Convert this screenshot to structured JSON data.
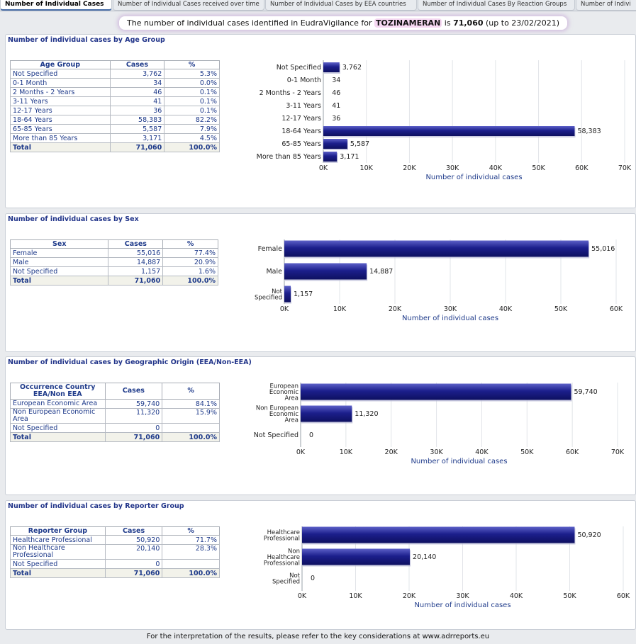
{
  "tabs": [
    {
      "label": "Number of Individual Cases",
      "active": true
    },
    {
      "label": "Number of Individual Cases received over time",
      "active": false
    },
    {
      "label": "Number of Individual Cases by EEA countries",
      "active": false
    },
    {
      "label": "Number of Individual Cases By Reaction Groups",
      "active": false
    },
    {
      "label": "Number of Indivi",
      "active": false
    }
  ],
  "banner": {
    "prefix": "The number of individual cases identified in EudraVigilance for ",
    "product": "TOZINAMERAN",
    "mid": " is ",
    "count": "71,060",
    "suffix": " (up to 23/02/2021)"
  },
  "footer": "For the interpretation of the results, please refer to the key considerations at www.adrreports.eu",
  "colors": {
    "bar": "#1c1f8c",
    "title": "#22358a"
  },
  "sections": [
    {
      "title": "Number of individual cases by Age Group",
      "table": {
        "headers": [
          "Age Group",
          "Cases",
          "%"
        ],
        "rows": [
          [
            "Not Specified",
            "3,762",
            "5.3%"
          ],
          [
            "0-1 Month",
            "34",
            "0.0%"
          ],
          [
            "2 Months - 2 Years",
            "46",
            "0.1%"
          ],
          [
            "3-11 Years",
            "41",
            "0.1%"
          ],
          [
            "12-17 Years",
            "36",
            "0.1%"
          ],
          [
            "18-64 Years",
            "58,383",
            "82.2%"
          ],
          [
            "65-85 Years",
            "5,587",
            "7.9%"
          ],
          [
            "More than 85 Years",
            "3,171",
            "4.5%"
          ]
        ],
        "total": [
          "Total",
          "71,060",
          "100.0%"
        ]
      }
    },
    {
      "title": "Number of individual cases by Sex",
      "table": {
        "headers": [
          "Sex",
          "Cases",
          "%"
        ],
        "rows": [
          [
            "Female",
            "55,016",
            "77.4%"
          ],
          [
            "Male",
            "14,887",
            "20.9%"
          ],
          [
            "Not Specified",
            "1,157",
            "1.6%"
          ]
        ],
        "total": [
          "Total",
          "71,060",
          "100.0%"
        ]
      }
    },
    {
      "title": "Number of individual cases by Geographic Origin (EEA/Non-EEA)",
      "table": {
        "headers": [
          "Occurrence Country EEA/Non EEA",
          "Cases",
          "%"
        ],
        "rows": [
          [
            "European Economic Area",
            "59,740",
            "84.1%"
          ],
          [
            "Non European Economic Area",
            "11,320",
            "15.9%"
          ],
          [
            "Not Specified",
            "0",
            ""
          ]
        ],
        "total": [
          "Total",
          "71,060",
          "100.0%"
        ]
      }
    },
    {
      "title": "Number of individual cases by Reporter Group",
      "table": {
        "headers": [
          "Reporter Group",
          "Cases",
          "%"
        ],
        "rows": [
          [
            "Healthcare Professional",
            "50,920",
            "71.7%"
          ],
          [
            "Non Healthcare Professional",
            "20,140",
            "28.3%"
          ],
          [
            "Not Specified",
            "0",
            ""
          ]
        ],
        "total": [
          "Total",
          "71,060",
          "100.0%"
        ]
      }
    }
  ],
  "chart_data": [
    {
      "type": "bar",
      "orientation": "horizontal",
      "categories": [
        "Not Specified",
        "0-1 Month",
        "2 Months - 2 Years",
        "3-11 Years",
        "12-17 Years",
        "18-64 Years",
        "65-85 Years",
        "More than 85 Years"
      ],
      "category_lines": [
        [
          "Not Specified"
        ],
        [
          "0-1 Month"
        ],
        [
          "2 Months - 2 Years"
        ],
        [
          "3-11 Years"
        ],
        [
          "12-17 Years"
        ],
        [
          "18-64 Years"
        ],
        [
          "65-85 Years"
        ],
        [
          "More than 85 Years"
        ]
      ],
      "values": [
        3762,
        34,
        46,
        41,
        36,
        58383,
        5587,
        3171
      ],
      "value_labels": [
        "3,762",
        "34",
        "46",
        "41",
        "36",
        "58,383",
        "5,587",
        "3,171"
      ],
      "xlabel": "Number of individual cases",
      "xlim": [
        0,
        70000
      ],
      "ticks": [
        "0K",
        "10K",
        "20K",
        "30K",
        "40K",
        "50K",
        "60K",
        "70K"
      ],
      "grid": true
    },
    {
      "type": "bar",
      "orientation": "horizontal",
      "categories": [
        "Female",
        "Male",
        "Not Specified"
      ],
      "category_lines": [
        [
          "Female"
        ],
        [
          "Male"
        ],
        [
          "Not",
          "Specified"
        ]
      ],
      "values": [
        55016,
        14887,
        1157
      ],
      "value_labels": [
        "55,016",
        "14,887",
        "1,157"
      ],
      "xlabel": "Number of individual cases",
      "xlim": [
        0,
        60000
      ],
      "ticks": [
        "0K",
        "10K",
        "20K",
        "30K",
        "40K",
        "50K",
        "60K"
      ],
      "grid": true
    },
    {
      "type": "bar",
      "orientation": "horizontal",
      "categories": [
        "European Economic Area",
        "Non European Economic Area",
        "Not Specified"
      ],
      "category_lines": [
        [
          "European",
          "Economic",
          "Area"
        ],
        [
          "Non European",
          "Economic",
          "Area"
        ],
        [
          "Not Specified"
        ]
      ],
      "values": [
        59740,
        11320,
        0
      ],
      "value_labels": [
        "59,740",
        "11,320",
        "0"
      ],
      "xlabel": "Number of individual cases",
      "xlim": [
        0,
        70000
      ],
      "ticks": [
        "0K",
        "10K",
        "20K",
        "30K",
        "40K",
        "50K",
        "60K",
        "70K"
      ],
      "grid": true
    },
    {
      "type": "bar",
      "orientation": "horizontal",
      "categories": [
        "Healthcare Professional",
        "Non Healthcare Professional",
        "Not Specified"
      ],
      "category_lines": [
        [
          "Healthcare",
          "Professional"
        ],
        [
          "Non",
          "Healthcare",
          "Professional"
        ],
        [
          "Not",
          "Specified"
        ]
      ],
      "values": [
        50920,
        20140,
        0
      ],
      "value_labels": [
        "50,920",
        "20,140",
        "0"
      ],
      "xlabel": "Number of individual cases",
      "xlim": [
        0,
        60000
      ],
      "ticks": [
        "0K",
        "10K",
        "20K",
        "30K",
        "40K",
        "50K",
        "60K"
      ],
      "grid": true
    }
  ]
}
